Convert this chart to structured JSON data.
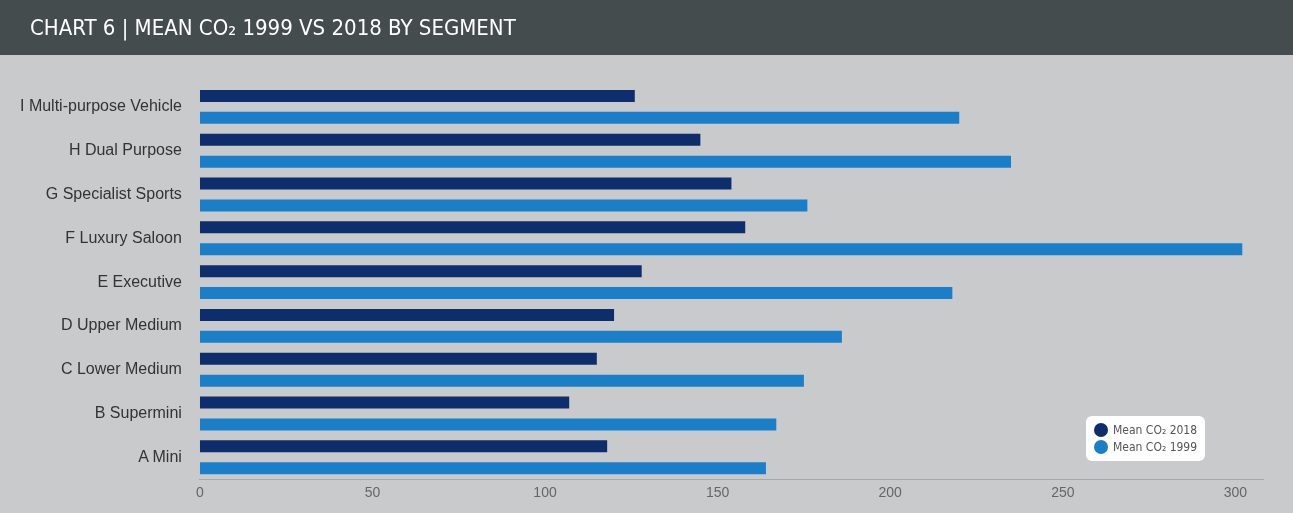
{
  "chart_data": {
    "type": "bar",
    "orientation": "horizontal",
    "title": "CHART 6 | MEAN CO₂ 1999 VS 2018 BY SEGMENT",
    "categories": [
      "I Multi-purpose Vehicle",
      "H Dual Purpose",
      "G Specialist Sports",
      "F Luxury Saloon",
      "E Executive",
      "D Upper Medium",
      "C Lower Medium",
      "B Supermini",
      "A Mini"
    ],
    "series": [
      {
        "name": "Mean CO₂ 2018",
        "color": "#0d2d6c",
        "values": [
          126,
          145,
          154,
          158,
          128,
          120,
          115,
          107,
          118
        ]
      },
      {
        "name": "Mean CO₂ 1999",
        "color": "#1a7fc8",
        "values": [
          220,
          235,
          176,
          302,
          218,
          186,
          175,
          167,
          164
        ]
      }
    ],
    "xlim": [
      0,
      308
    ],
    "xticks": [
      0,
      50,
      100,
      150,
      200,
      250,
      300
    ],
    "grid": false,
    "legend": "bottom right"
  }
}
